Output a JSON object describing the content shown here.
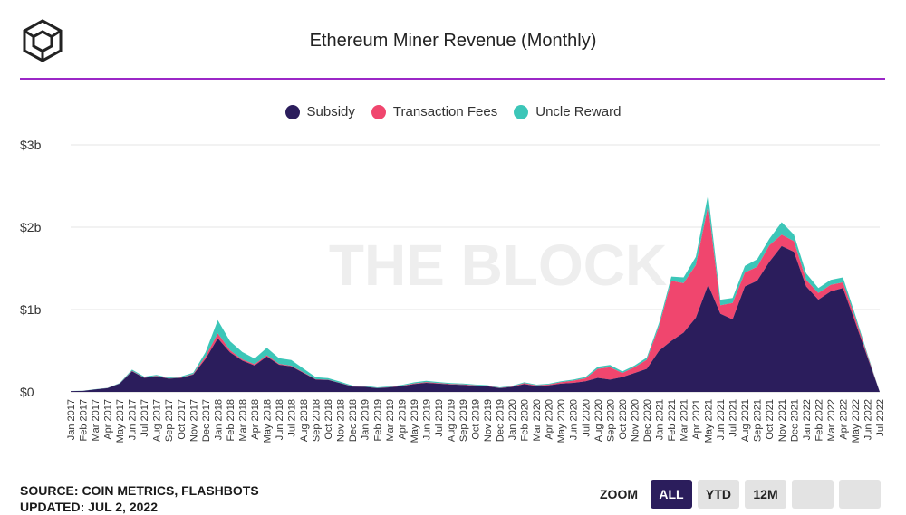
{
  "header": {
    "title": "Ethereum Miner Revenue (Monthly)",
    "logo_icon": "the-block-cube-icon"
  },
  "legend": [
    {
      "label": "Subsidy",
      "color": "#2b1d5c"
    },
    {
      "label": "Transaction Fees",
      "color": "#f0466e"
    },
    {
      "label": "Uncle Reward",
      "color": "#3cc6b8"
    }
  ],
  "watermark": "THE BLOCK",
  "source": {
    "line1": "SOURCE: COIN METRICS, FLASHBOTS",
    "line2": "UPDATED: JUL 2, 2022"
  },
  "zoom": {
    "label": "ZOOM",
    "buttons": [
      "ALL",
      "YTD",
      "12M",
      "",
      ""
    ],
    "active": "ALL"
  },
  "chart_data": {
    "type": "area",
    "stacked": true,
    "title": "Ethereum Miner Revenue (Monthly)",
    "ylim": [
      0,
      3000000000
    ],
    "yticks": [
      "$0",
      "$1b",
      "$2b",
      "$3b"
    ],
    "grid": true,
    "legend_position": "top",
    "x": [
      "Jan 2017",
      "Feb 2017",
      "Mar 2017",
      "Apr 2017",
      "May 2017",
      "Jun 2017",
      "Jul 2017",
      "Aug 2017",
      "Sep 2017",
      "Oct 2017",
      "Nov 2017",
      "Dec 2017",
      "Jan 2018",
      "Feb 2018",
      "Mar 2018",
      "Apr 2018",
      "May 2018",
      "Jun 2018",
      "Jul 2018",
      "Aug 2018",
      "Sep 2018",
      "Oct 2018",
      "Nov 2018",
      "Dec 2018",
      "Jan 2019",
      "Feb 2019",
      "Mar 2019",
      "Apr 2019",
      "May 2019",
      "Jun 2019",
      "Jul 2019",
      "Aug 2019",
      "Sep 2019",
      "Oct 2019",
      "Nov 2019",
      "Dec 2019",
      "Jan 2020",
      "Feb 2020",
      "Mar 2020",
      "Apr 2020",
      "May 2020",
      "Jun 2020",
      "Jul 2020",
      "Aug 2020",
      "Sep 2020",
      "Oct 2020",
      "Nov 2020",
      "Dec 2020",
      "Jan 2021",
      "Feb 2021",
      "Mar 2021",
      "Apr 2021",
      "May 2021",
      "Jun 2021",
      "Jul 2021",
      "Aug 2021",
      "Sep 2021",
      "Oct 2021",
      "Nov 2021",
      "Dec 2021",
      "Jan 2022",
      "Feb 2022",
      "Mar 2022",
      "Apr 2022",
      "May 2022",
      "Jun 2022",
      "Jul 2022"
    ],
    "series": [
      {
        "name": "Subsidy",
        "color": "#2b1d5c",
        "values": [
          10,
          12,
          30,
          45,
          100,
          250,
          170,
          190,
          160,
          170,
          210,
          400,
          650,
          480,
          380,
          320,
          430,
          330,
          310,
          230,
          150,
          145,
          105,
          65,
          62,
          45,
          55,
          70,
          95,
          110,
          100,
          90,
          85,
          75,
          68,
          45,
          60,
          95,
          70,
          80,
          100,
          110,
          130,
          170,
          150,
          180,
          230,
          280,
          500,
          620,
          720,
          900,
          1300,
          950,
          880,
          1280,
          1350,
          1580,
          1770,
          1700,
          1280,
          1120,
          1220,
          1260,
          850,
          420,
          0
        ]
      },
      {
        "name": "Transaction Fees",
        "color": "#f0466e",
        "values": [
          0,
          0,
          1,
          1,
          2,
          5,
          4,
          4,
          4,
          5,
          8,
          30,
          60,
          25,
          15,
          15,
          15,
          10,
          8,
          6,
          4,
          3,
          3,
          2,
          2,
          2,
          3,
          4,
          7,
          9,
          7,
          6,
          5,
          4,
          4,
          3,
          5,
          10,
          8,
          9,
          18,
          26,
          35,
          110,
          150,
          50,
          70,
          110,
          300,
          730,
          600,
          640,
          960,
          100,
          200,
          170,
          170,
          200,
          140,
          130,
          80,
          80,
          80,
          70,
          50,
          20,
          0
        ]
      },
      {
        "name": "Uncle Reward",
        "color": "#3cc6b8",
        "values": [
          1,
          1,
          2,
          3,
          5,
          15,
          12,
          13,
          10,
          12,
          15,
          50,
          160,
          110,
          90,
          70,
          90,
          70,
          70,
          45,
          25,
          20,
          15,
          10,
          10,
          8,
          8,
          10,
          13,
          15,
          13,
          12,
          11,
          10,
          9,
          7,
          8,
          12,
          10,
          10,
          12,
          14,
          16,
          25,
          28,
          18,
          20,
          28,
          40,
          50,
          70,
          100,
          140,
          70,
          60,
          80,
          90,
          80,
          150,
          80,
          80,
          60,
          60,
          60,
          40,
          20,
          0
        ]
      }
    ]
  }
}
